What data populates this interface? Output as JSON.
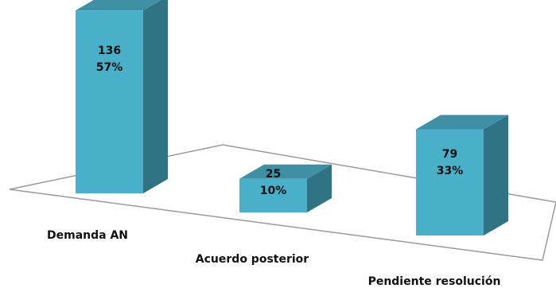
{
  "chart_data": {
    "type": "bar",
    "style": "3d-column",
    "categories": [
      "Demanda AN",
      "Acuerdo posterior",
      "Pendiente resolución"
    ],
    "values": [
      136,
      25,
      79
    ],
    "percent_labels": [
      "57%",
      "10%",
      "33%"
    ],
    "value_labels": [
      "136",
      "25",
      "79"
    ],
    "title": "",
    "xlabel": "",
    "ylabel": "",
    "grid": false,
    "legend": "none",
    "colors": {
      "bar_front": "#4aafc8",
      "bar_side": "#2f7384",
      "bar_top": "#3f8fa5",
      "floor_line": "#9a9a9a",
      "text": "#111111"
    }
  }
}
